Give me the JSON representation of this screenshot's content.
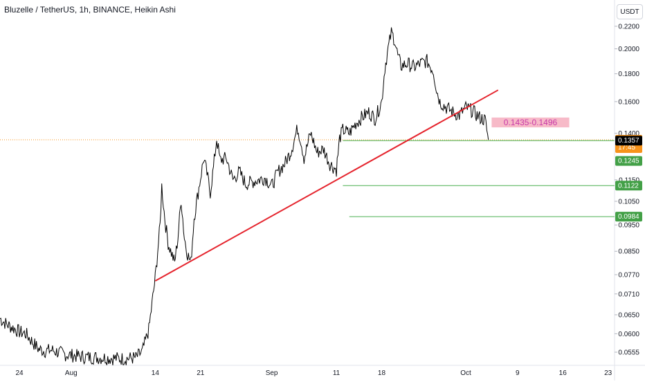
{
  "header": {
    "title": "Bluzelle / TetherUS, 1h, BINANCE, Heikin Ashi",
    "currency_button": "USDT"
  },
  "chart_data": {
    "type": "candlestick",
    "title": "Bluzelle / TetherUS, 1h, BINANCE, Heikin Ashi",
    "y_scale": "log",
    "ylim": [
      0.0525,
      0.2265
    ],
    "y_ticks": [
      {
        "v": 0.22,
        "label": "0.2200"
      },
      {
        "v": 0.2,
        "label": "0.2000"
      },
      {
        "v": 0.18,
        "label": "0.1800"
      },
      {
        "v": 0.16,
        "label": "0.1600"
      },
      {
        "v": 0.14,
        "label": "0.1400"
      },
      {
        "v": 0.115,
        "label": "0.1150"
      },
      {
        "v": 0.105,
        "label": "0.1050"
      },
      {
        "v": 0.095,
        "label": "0.0950"
      },
      {
        "v": 0.085,
        "label": "0.0850"
      },
      {
        "v": 0.077,
        "label": "0.0770"
      },
      {
        "v": 0.071,
        "label": "0.0710"
      },
      {
        "v": 0.065,
        "label": "0.0650"
      },
      {
        "v": 0.06,
        "label": "0.0600"
      },
      {
        "v": 0.0555,
        "label": "0.0555"
      }
    ],
    "x_range": [
      "2023-07-21",
      "2023-10-24"
    ],
    "x_ticks": [
      {
        "date": "2023-07-24",
        "label": "24"
      },
      {
        "date": "2023-08-01",
        "label": "Aug"
      },
      {
        "date": "2023-08-14",
        "label": "14"
      },
      {
        "date": "2023-08-21",
        "label": "21"
      },
      {
        "date": "2023-09-01",
        "label": "Sep"
      },
      {
        "date": "2023-09-11",
        "label": "11"
      },
      {
        "date": "2023-09-18",
        "label": "18"
      },
      {
        "date": "2023-10-01",
        "label": "Oct"
      },
      {
        "date": "2023-10-09",
        "label": "9"
      },
      {
        "date": "2023-10-16",
        "label": "16"
      },
      {
        "date": "2023-10-23",
        "label": "23"
      }
    ],
    "price_path": [
      [
        "2023-07-21",
        0.064
      ],
      [
        "2023-07-22",
        0.0625
      ],
      [
        "2023-07-23",
        0.0615
      ],
      [
        "2023-07-24",
        0.0605
      ],
      [
        "2023-07-25",
        0.06
      ],
      [
        "2023-07-26",
        0.058
      ],
      [
        "2023-07-27",
        0.0562
      ],
      [
        "2023-07-28",
        0.0558
      ],
      [
        "2023-07-29",
        0.056
      ],
      [
        "2023-07-30",
        0.0555
      ],
      [
        "2023-07-31",
        0.055
      ],
      [
        "2023-08-01",
        0.0548
      ],
      [
        "2023-08-03",
        0.0544
      ],
      [
        "2023-08-06",
        0.0542
      ],
      [
        "2023-08-09",
        0.054
      ],
      [
        "2023-08-11",
        0.0542
      ],
      [
        "2023-08-12",
        0.0556
      ],
      [
        "2023-08-13",
        0.061
      ],
      [
        "2023-08-14",
        0.076
      ],
      [
        "2023-08-14T18:00",
        0.095
      ],
      [
        "2023-08-15",
        0.112
      ],
      [
        "2023-08-15T12:00",
        0.097
      ],
      [
        "2023-08-16",
        0.088
      ],
      [
        "2023-08-17",
        0.081
      ],
      [
        "2023-08-17T12:00",
        0.09
      ],
      [
        "2023-08-18",
        0.106
      ],
      [
        "2023-08-18T12:00",
        0.09
      ],
      [
        "2023-08-19",
        0.084
      ],
      [
        "2023-08-19T12:00",
        0.081
      ],
      [
        "2023-08-20",
        0.098
      ],
      [
        "2023-08-21",
        0.116
      ],
      [
        "2023-08-21T12:00",
        0.126
      ],
      [
        "2023-08-22",
        0.118
      ],
      [
        "2023-08-22T12:00",
        0.109
      ],
      [
        "2023-08-23",
        0.121
      ],
      [
        "2023-08-23T12:00",
        0.137
      ],
      [
        "2023-08-24",
        0.125
      ],
      [
        "2023-08-25",
        0.126
      ],
      [
        "2023-08-26",
        0.115
      ],
      [
        "2023-08-27",
        0.119
      ],
      [
        "2023-08-28",
        0.113
      ],
      [
        "2023-08-29",
        0.114
      ],
      [
        "2023-08-30",
        0.115
      ],
      [
        "2023-08-31",
        0.116
      ],
      [
        "2023-09-01",
        0.112
      ],
      [
        "2023-09-02",
        0.119
      ],
      [
        "2023-09-03",
        0.123
      ],
      [
        "2023-09-04",
        0.13
      ],
      [
        "2023-09-05",
        0.143
      ],
      [
        "2023-09-05T12:00",
        0.136
      ],
      [
        "2023-09-06",
        0.126
      ],
      [
        "2023-09-07",
        0.14
      ],
      [
        "2023-09-07T12:00",
        0.135
      ],
      [
        "2023-09-08",
        0.129
      ],
      [
        "2023-09-09",
        0.131
      ],
      [
        "2023-09-10",
        0.123
      ],
      [
        "2023-09-11",
        0.12
      ],
      [
        "2023-09-11T12:00",
        0.137
      ],
      [
        "2023-09-12",
        0.142
      ],
      [
        "2023-09-13",
        0.14
      ],
      [
        "2023-09-14",
        0.146
      ],
      [
        "2023-09-15",
        0.15
      ],
      [
        "2023-09-16",
        0.153
      ],
      [
        "2023-09-17",
        0.149
      ],
      [
        "2023-09-18",
        0.16
      ],
      [
        "2023-09-18T12:00",
        0.185
      ],
      [
        "2023-09-19",
        0.2
      ],
      [
        "2023-09-19T12:00",
        0.214
      ],
      [
        "2023-09-20",
        0.208
      ],
      [
        "2023-09-20T12:00",
        0.194
      ],
      [
        "2023-09-21",
        0.186
      ],
      [
        "2023-09-22",
        0.188
      ],
      [
        "2023-09-23",
        0.185
      ],
      [
        "2023-09-24",
        0.188
      ],
      [
        "2023-09-25",
        0.19
      ],
      [
        "2023-09-26",
        0.182
      ],
      [
        "2023-09-26T12:00",
        0.168
      ],
      [
        "2023-09-27",
        0.16
      ],
      [
        "2023-09-28",
        0.156
      ],
      [
        "2023-09-29",
        0.153
      ],
      [
        "2023-09-30",
        0.151
      ],
      [
        "2023-10-01",
        0.156
      ],
      [
        "2023-10-02",
        0.154
      ],
      [
        "2023-10-03",
        0.15
      ],
      [
        "2023-10-04",
        0.148
      ],
      [
        "2023-10-04T12:00",
        0.1362
      ]
    ],
    "trendline": {
      "start": [
        "2023-08-14",
        0.075
      ],
      "end": [
        "2023-10-06",
        0.168
      ],
      "color": "#e5242d"
    },
    "zone": {
      "label": "0.1435-0.1496",
      "low": 0.1435,
      "high": 0.1496,
      "from": "2023-10-05",
      "to": "2023-10-17",
      "fill": "#f7b6c5",
      "text_color": "#c839a8"
    },
    "horizontal_levels": [
      {
        "value": 0.1357,
        "label": "0.1357",
        "from": "2023-09-12",
        "color": "#4caf50",
        "badge_color": "#000000"
      },
      {
        "value": 0.1245,
        "label": "0.1245",
        "from": null,
        "color": "#4caf50",
        "badge_color": "#43a047"
      },
      {
        "value": 0.1122,
        "label": "0.1122",
        "from": "2023-09-12",
        "color": "#4caf50",
        "badge_color": "#43a047"
      },
      {
        "value": 0.0984,
        "label": "0.0984",
        "from": "2023-09-13",
        "color": "#4caf50",
        "badge_color": "#43a047"
      }
    ],
    "current_price": {
      "value": 0.1362,
      "label": "0.1362",
      "countdown": "17:45",
      "color": "#f7931a"
    }
  }
}
